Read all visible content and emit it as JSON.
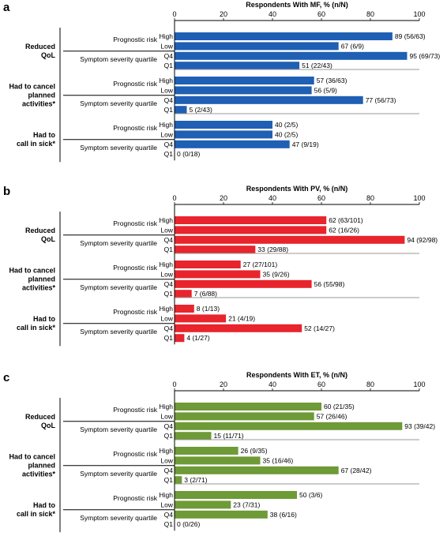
{
  "chart_data": [
    {
      "type": "bar",
      "panel": "a",
      "xlabel": "Respondents With MF, % (n/N)",
      "xlim": [
        0,
        100
      ],
      "ticks": [
        "0",
        "20",
        "40",
        "60",
        "80",
        "100"
      ],
      "subgroup_labels": [
        "Prognostic risk",
        "Symptom severity quartile"
      ],
      "groups": [
        {
          "label_lines": [
            "Reduced",
            "QoL"
          ],
          "bars": [
            {
              "level": "High",
              "value": 89,
              "label": "89 (56/63)"
            },
            {
              "level": "Low",
              "value": 67,
              "label": "67 (6/9)"
            },
            {
              "level": "Q4",
              "value": 95,
              "label": "95 (69/73)"
            },
            {
              "level": "Q1",
              "value": 51,
              "label": "51 (22/43)"
            }
          ]
        },
        {
          "label_lines": [
            "Had to cancel",
            "planned",
            "activities*"
          ],
          "bars": [
            {
              "level": "High",
              "value": 57,
              "label": "57 (36/63)"
            },
            {
              "level": "Low",
              "value": 56,
              "label": "56 (5/9)"
            },
            {
              "level": "Q4",
              "value": 77,
              "label": "77 (56/73)"
            },
            {
              "level": "Q1",
              "value": 5,
              "label": "5 (2/43)"
            }
          ]
        },
        {
          "label_lines": [
            "Had to",
            "call in sick*"
          ],
          "bars": [
            {
              "level": "High",
              "value": 40,
              "label": "40 (2/5)"
            },
            {
              "level": "Low",
              "value": 40,
              "label": "40 (2/5)"
            },
            {
              "level": "Q4",
              "value": 47,
              "label": "47 (9/19)"
            },
            {
              "level": "Q1",
              "value": 0,
              "label": "0 (0/18)"
            }
          ]
        }
      ],
      "color": "#1f5fb4"
    },
    {
      "type": "bar",
      "panel": "b",
      "xlabel": "Respondents With PV, % (n/N)",
      "xlim": [
        0,
        100
      ],
      "ticks": [
        "0",
        "20",
        "40",
        "60",
        "80",
        "100"
      ],
      "subgroup_labels": [
        "Prognostic risk",
        "Symptom severity quartile"
      ],
      "groups": [
        {
          "label_lines": [
            "Reduced",
            "QoL"
          ],
          "bars": [
            {
              "level": "High",
              "value": 62,
              "label": "62 (63/101)"
            },
            {
              "level": "Low",
              "value": 62,
              "label": "62 (16/26)"
            },
            {
              "level": "Q4",
              "value": 94,
              "label": "94 (92/98)"
            },
            {
              "level": "Q1",
              "value": 33,
              "label": "33 (29/88)"
            }
          ]
        },
        {
          "label_lines": [
            "Had to cancel",
            "planned",
            "activities*"
          ],
          "bars": [
            {
              "level": "High",
              "value": 27,
              "label": "27 (27/101)"
            },
            {
              "level": "Low",
              "value": 35,
              "label": "35 (9/26)"
            },
            {
              "level": "Q4",
              "value": 56,
              "label": "56 (55/98)"
            },
            {
              "level": "Q1",
              "value": 7,
              "label": "7 (6/88)"
            }
          ]
        },
        {
          "label_lines": [
            "Had to",
            "call in sick*"
          ],
          "bars": [
            {
              "level": "High",
              "value": 8,
              "label": "8 (1/13)"
            },
            {
              "level": "Low",
              "value": 21,
              "label": "21 (4/19)"
            },
            {
              "level": "Q4",
              "value": 52,
              "label": "52 (14/27)"
            },
            {
              "level": "Q1",
              "value": 4,
              "label": "4 (1/27)"
            }
          ]
        }
      ],
      "color": "#e8242c"
    },
    {
      "type": "bar",
      "panel": "c",
      "xlabel": "Respondents With ET, % (n/N)",
      "xlim": [
        0,
        100
      ],
      "ticks": [
        "0",
        "20",
        "40",
        "60",
        "80",
        "100"
      ],
      "subgroup_labels": [
        "Prognostic risk",
        "Symptom severity quartile"
      ],
      "groups": [
        {
          "label_lines": [
            "Reduced",
            "QoL"
          ],
          "bars": [
            {
              "level": "High",
              "value": 60,
              "label": "60 (21/35)"
            },
            {
              "level": "Low",
              "value": 57,
              "label": "57 (26/46)"
            },
            {
              "level": "Q4",
              "value": 93,
              "label": "93 (39/42)"
            },
            {
              "level": "Q1",
              "value": 15,
              "label": "15 (11/71)"
            }
          ]
        },
        {
          "label_lines": [
            "Had to cancel",
            "planned",
            "activities*"
          ],
          "bars": [
            {
              "level": "High",
              "value": 26,
              "label": "26 (9/35)"
            },
            {
              "level": "Low",
              "value": 35,
              "label": "35 (16/46)"
            },
            {
              "level": "Q4",
              "value": 67,
              "label": "67 (28/42)"
            },
            {
              "level": "Q1",
              "value": 3,
              "label": "3 (2/71)"
            }
          ]
        },
        {
          "label_lines": [
            "Had to",
            "call in sick*"
          ],
          "bars": [
            {
              "level": "High",
              "value": 50,
              "label": "50 (3/6)"
            },
            {
              "level": "Low",
              "value": 23,
              "label": "23 (7/31)"
            },
            {
              "level": "Q4",
              "value": 38,
              "label": "38 (6/16)"
            },
            {
              "level": "Q1",
              "value": 0,
              "label": "0 (0/26)"
            }
          ]
        }
      ],
      "color": "#6e9a37"
    }
  ]
}
